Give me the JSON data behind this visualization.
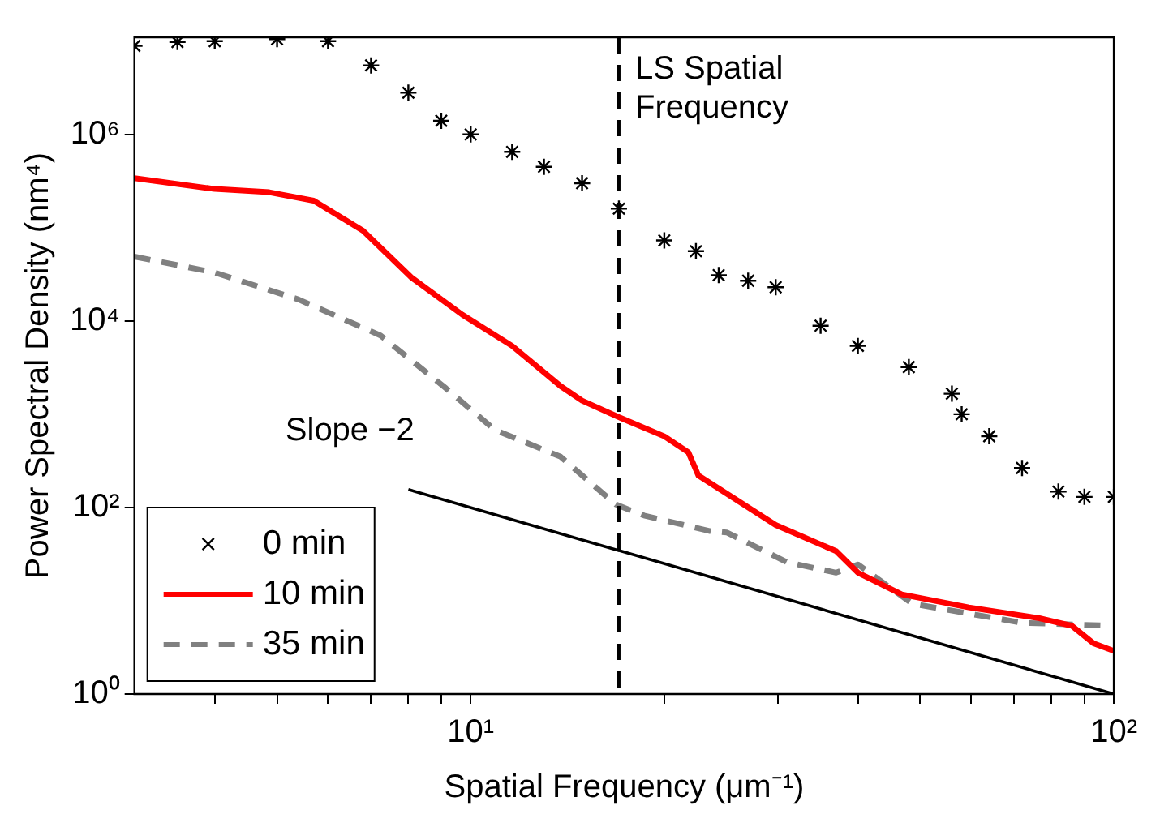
{
  "chart_data": {
    "type": "line",
    "xlabel": "Spatial Frequency (μm⁻¹)",
    "ylabel": "Power Spectral Density (nm⁴)",
    "log": "xy",
    "grid": false,
    "legend": "bottom left",
    "xlim": [
      3,
      100
    ],
    "ylim": [
      1,
      11000000
    ],
    "xticks": [
      {
        "value": 4,
        "label": null
      },
      {
        "value": 5,
        "label": null
      },
      {
        "value": 6,
        "label": null
      },
      {
        "value": 7,
        "label": null
      },
      {
        "value": 8,
        "label": null
      },
      {
        "value": 9,
        "label": null
      },
      {
        "value": 10,
        "label": "10¹"
      },
      {
        "value": 20,
        "label": null
      },
      {
        "value": 30,
        "label": null
      },
      {
        "value": 40,
        "label": null
      },
      {
        "value": 50,
        "label": null
      },
      {
        "value": 60,
        "label": null
      },
      {
        "value": 70,
        "label": null
      },
      {
        "value": 80,
        "label": null
      },
      {
        "value": 90,
        "label": null
      },
      {
        "value": 100,
        "label": "10²"
      }
    ],
    "yticks": [
      {
        "value": 1,
        "label": "10⁰"
      },
      {
        "value": 100,
        "label": "10²"
      },
      {
        "value": 10000,
        "label": "10⁴"
      },
      {
        "value": 1000000,
        "label": "10⁶"
      }
    ],
    "series": [
      {
        "name": "0 min",
        "type": "scatter",
        "marker": "cross",
        "color": "#000000",
        "x": [
          3,
          3.5,
          4,
          5,
          6,
          7,
          8,
          9,
          10,
          11.6,
          13,
          14.9,
          17,
          20,
          22.4,
          24.3,
          27,
          29.8,
          35,
          40,
          48,
          56,
          58,
          64,
          72,
          82,
          90,
          100
        ],
        "values": [
          8900000,
          9800000,
          10000000,
          10500000,
          10000000,
          5500000,
          2800000,
          1400000,
          1000000,
          650000,
          450000,
          300000,
          160000,
          73000,
          56000,
          31000,
          27000,
          23000,
          8900,
          5400,
          3200,
          1660,
          1000,
          580,
          265,
          148,
          130,
          130
        ]
      },
      {
        "name": "10 min",
        "type": "line",
        "marker": "none",
        "line_style": "solid",
        "color": "#ff0000",
        "x": [
          3,
          4,
          4.86,
          5.7,
          6.8,
          8.1,
          9.7,
          11.6,
          13.8,
          14.9,
          17,
          20,
          21.8,
          22.6,
          29.8,
          37,
          40,
          46.8,
          59.5,
          76.6,
          86,
          93,
          100
        ],
        "values": [
          340000,
          260000,
          240000,
          195000,
          93000,
          29000,
          11700,
          5400,
          2000,
          1400,
          930,
          580,
          390,
          220,
          65,
          34,
          20,
          11.7,
          8.5,
          6.5,
          5.4,
          3.5,
          2.9
        ]
      },
      {
        "name": "35 min",
        "type": "line",
        "marker": "none",
        "line_style": "dashed",
        "color": "#808080",
        "x": [
          3,
          4,
          5.4,
          7.24,
          9.15,
          10.9,
          13.8,
          16.8,
          18.6,
          23.5,
          25,
          31,
          37,
          40,
          48.6,
          72,
          98.6
        ],
        "values": [
          49000,
          33000,
          17000,
          7000,
          1900,
          680,
          350,
          108,
          82,
          56,
          54,
          26,
          20,
          24.5,
          9.3,
          5.8,
          5.4
        ]
      },
      {
        "type": "line",
        "marker": "none",
        "line_style": "solid",
        "color": "#000000",
        "x": [
          8,
          100
        ],
        "values": [
          156,
          1
        ]
      }
    ],
    "ref_lines": [
      {
        "axis": "x",
        "value": 17,
        "label": "LS Spatial Frequency",
        "color": "#000000",
        "line_style": "dashed"
      }
    ],
    "annotations": [
      "Slope −2"
    ]
  }
}
